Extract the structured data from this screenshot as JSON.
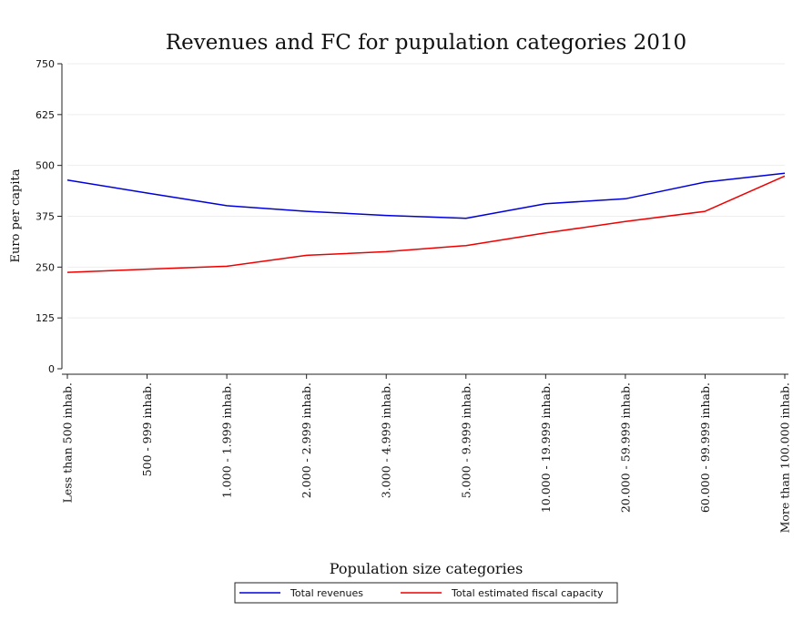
{
  "chart_data": {
    "type": "line",
    "title": "Revenues and FC for pupulation categories 2010",
    "xlabel": "Population size categories",
    "ylabel": "Euro per capita",
    "ylim": [
      0,
      750
    ],
    "yticks": [
      0,
      125,
      250,
      375,
      500,
      625,
      750
    ],
    "grid": true,
    "legend_position": "bottom",
    "categories": [
      "Less than 500 inhab.",
      "500 - 999 inhab.",
      "1.000 - 1.999 inhab.",
      "2.000 - 2.999 inhab.",
      "3.000 - 4.999 inhab.",
      "5.000 - 9.999 inhab.",
      "10.000 - 19.999 inhab.",
      "20.000 - 59.999 inhab.",
      "60.000 - 99.999 inhab.",
      "More than 100.000 inhab."
    ],
    "series": [
      {
        "name": "Total revenues",
        "color": "#0000dd",
        "values": [
          464,
          432,
          401,
          387,
          377,
          370,
          406,
          418,
          459,
          481
        ]
      },
      {
        "name": "Total estimated fiscal capacity",
        "color": "#ee0000",
        "values": [
          237,
          245,
          252,
          279,
          288,
          303,
          334,
          362,
          387,
          474
        ]
      }
    ]
  }
}
